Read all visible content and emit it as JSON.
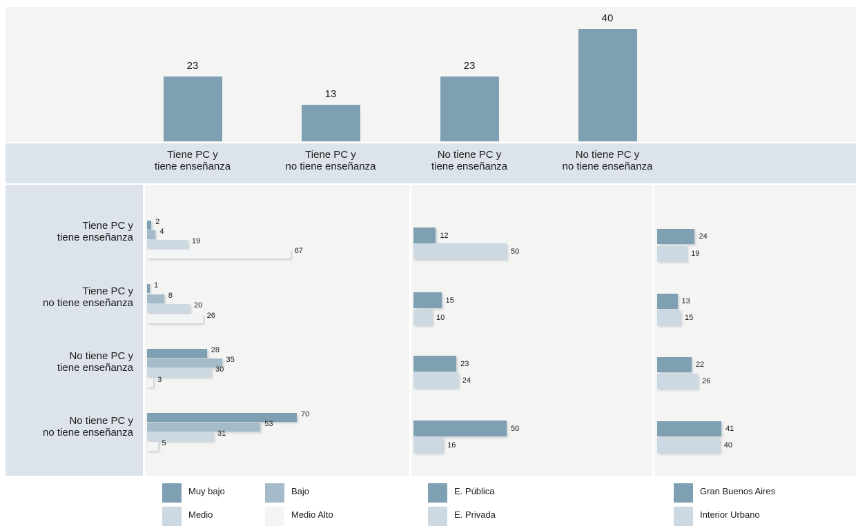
{
  "chart_data": [
    {
      "type": "bar",
      "categories": [
        "Tiene PC y\ntiene enseñanza",
        "Tiene PC y\nno tiene enseñanza",
        "No tiene PC y\ntiene enseñanza",
        "No tiene PC y\nno tiene enseñanza"
      ],
      "values": [
        23,
        13,
        23,
        40
      ],
      "ylim": [
        0,
        40
      ]
    },
    {
      "type": "bar",
      "orientation": "horizontal",
      "categories": [
        "Tiene PC y\ntiene enseñanza",
        "Tiene PC y\nno tiene enseñanza",
        "No tiene PC y\ntiene enseñanza",
        "No tiene PC y\nno tiene enseñanza"
      ],
      "series": [
        {
          "name": "Muy bajo",
          "values": [
            2,
            1,
            28,
            70
          ]
        },
        {
          "name": "Bajo",
          "values": [
            4,
            8,
            35,
            53
          ]
        },
        {
          "name": "Medio",
          "values": [
            19,
            20,
            30,
            31
          ]
        },
        {
          "name": "Medio Alto",
          "values": [
            67,
            26,
            3,
            5
          ]
        }
      ]
    },
    {
      "type": "bar",
      "orientation": "horizontal",
      "categories": [
        "Tiene PC y\ntiene enseñanza",
        "Tiene PC y\nno tiene enseñanza",
        "No tiene PC y\ntiene enseñanza",
        "No tiene PC y\nno tiene enseñanza"
      ],
      "series": [
        {
          "name": "E. Pública",
          "values": [
            12,
            15,
            23,
            50
          ]
        },
        {
          "name": "E. Privada",
          "values": [
            50,
            10,
            24,
            16
          ]
        }
      ]
    },
    {
      "type": "bar",
      "orientation": "horizontal",
      "categories": [
        "Tiene PC y\ntiene enseñanza",
        "Tiene PC y\nno tiene enseñanza",
        "No tiene PC y\ntiene enseñanza",
        "No tiene PC y\nno tiene enseñanza"
      ],
      "series": [
        {
          "name": "Gran Buenos Aires",
          "values": [
            24,
            13,
            22,
            41
          ]
        },
        {
          "name": "Interior Urbano",
          "values": [
            19,
            15,
            26,
            40
          ]
        }
      ]
    }
  ],
  "colors": {
    "muy_bajo": "#7f9fb3",
    "bajo": "#a6bbc9",
    "medio": "#ccd8e2",
    "medio_alto": "#f3f4f6",
    "publica": "#7f9fb3",
    "privada": "#ccd8e2",
    "gba": "#7f9fb3",
    "interior": "#ccd8e2"
  }
}
